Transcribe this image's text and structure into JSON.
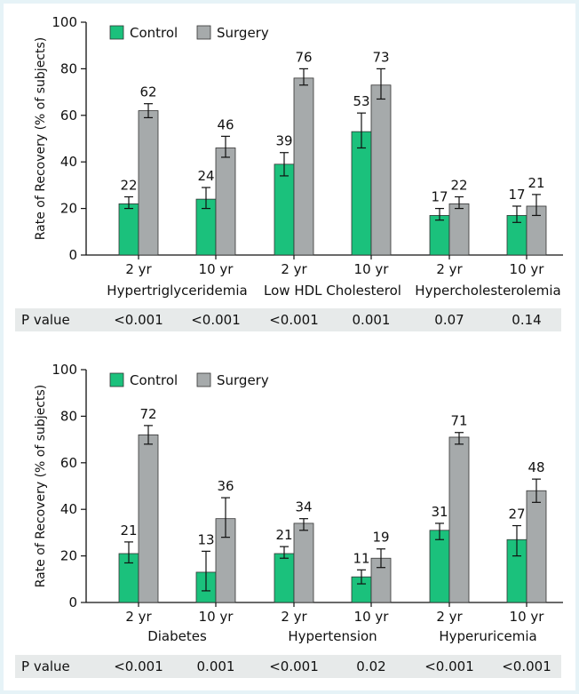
{
  "colors": {
    "control": "#1bc17c",
    "surgery": "#a6aaab",
    "pbar": "#e7eaea",
    "background": "#e6f3f7"
  },
  "legend": {
    "control": "Control",
    "surgery": "Surgery"
  },
  "chart_data": [
    {
      "type": "bar",
      "ylabel": "Rate of Recovery (% of subjects)",
      "ylim": [
        0,
        100
      ],
      "yticks": [
        "0",
        "20",
        "40",
        "60",
        "80",
        "100"
      ],
      "legend_position": "top-left",
      "groups": [
        "Hypertriglyceridemia",
        "Low HDL Cholesterol",
        "Hypercholesterolemia"
      ],
      "categories": [
        "2 yr",
        "10 yr",
        "2 yr",
        "10 yr",
        "2 yr",
        "10 yr"
      ],
      "series": [
        {
          "name": "Control",
          "values": [
            22,
            24,
            39,
            53,
            17,
            17
          ],
          "err_low": [
            20,
            20,
            34,
            46,
            15,
            14
          ],
          "err_high": [
            25,
            29,
            44,
            61,
            20,
            21
          ]
        },
        {
          "name": "Surgery",
          "values": [
            62,
            46,
            76,
            73,
            22,
            21
          ],
          "err_low": [
            59,
            42,
            73,
            67,
            20,
            17
          ],
          "err_high": [
            65,
            51,
            80,
            80,
            25,
            26
          ]
        }
      ],
      "value_labels": {
        "control": [
          "22",
          "24",
          "39",
          "53",
          "17",
          "17"
        ],
        "surgery": [
          "62",
          "46",
          "76",
          "73",
          "22",
          "21"
        ]
      },
      "p_label": "P value",
      "p_values": [
        "<0.001",
        "<0.001",
        "<0.001",
        "0.001",
        "0.07",
        "0.14"
      ]
    },
    {
      "type": "bar",
      "ylabel": "Rate of Recovery (% of subjects)",
      "ylim": [
        0,
        100
      ],
      "yticks": [
        "0",
        "20",
        "40",
        "60",
        "80",
        "100"
      ],
      "legend_position": "top-left",
      "groups": [
        "Diabetes",
        "Hypertension",
        "Hyperuricemia"
      ],
      "categories": [
        "2 yr",
        "10 yr",
        "2 yr",
        "10 yr",
        "2 yr",
        "10 yr"
      ],
      "series": [
        {
          "name": "Control",
          "values": [
            21,
            13,
            21,
            11,
            31,
            27
          ],
          "err_low": [
            17,
            5,
            19,
            8,
            27,
            20
          ],
          "err_high": [
            26,
            22,
            24,
            14,
            34,
            33
          ]
        },
        {
          "name": "Surgery",
          "values": [
            72,
            36,
            34,
            19,
            71,
            48
          ],
          "err_low": [
            68,
            28,
            31,
            15,
            68,
            43
          ],
          "err_high": [
            76,
            45,
            36,
            23,
            73,
            53
          ]
        }
      ],
      "value_labels": {
        "control": [
          "21",
          "13",
          "21",
          "11",
          "31",
          "27"
        ],
        "surgery": [
          "72",
          "36",
          "34",
          "19",
          "71",
          "48"
        ]
      },
      "p_label": "P value",
      "p_values": [
        "<0.001",
        "0.001",
        "<0.001",
        "0.02",
        "<0.001",
        "<0.001"
      ]
    }
  ]
}
